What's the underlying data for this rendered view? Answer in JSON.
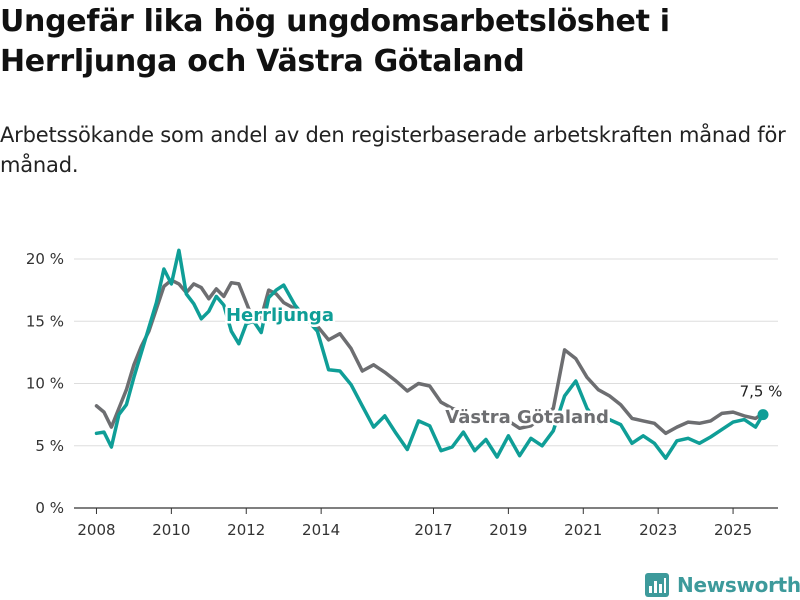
{
  "title": "Ungefär lika hög ungdomsarbetslöshet i Herrljunga och Västra Götaland",
  "subtitle": "Arbetssökande som andel av den registerbaserade arbetskraften månad för månad.",
  "brand": {
    "name": "Newsworthy",
    "icon": "bar-chart-logo-icon"
  },
  "colors": {
    "herrljunga": "#0f9e97",
    "vastra_gotaland": "#6d6e71",
    "grid": "#dddddd",
    "brand": "#3d9a9b"
  },
  "chart_data": {
    "type": "line",
    "title": "Ungefär lika hög ungdomsarbetslöshet i Herrljunga och Västra Götaland",
    "xlabel": "",
    "ylabel": "",
    "xlim": [
      2007.4,
      2026.2
    ],
    "ylim": [
      0,
      20
    ],
    "y_ticks": [
      0,
      5,
      10,
      15,
      20
    ],
    "y_tick_labels": [
      "0 %",
      "5 %",
      "10 %",
      "15 %",
      "20 %"
    ],
    "x_ticks": [
      2008,
      2010,
      2012,
      2014,
      2017,
      2019,
      2021,
      2023,
      2025
    ],
    "x_tick_labels": [
      "2008",
      "2010",
      "2012",
      "2014",
      "2017",
      "2019",
      "2021",
      "2023",
      "2025"
    ],
    "grid": true,
    "end_annotation": {
      "series": "Herrljunga",
      "text": "7,5 %",
      "value": 7.5
    },
    "series": [
      {
        "name": "Herrljunga",
        "label_at": [
          2012.9,
          15.5
        ],
        "x": [
          2008.0,
          2008.2,
          2008.4,
          2008.6,
          2008.8,
          2009.0,
          2009.2,
          2009.4,
          2009.6,
          2009.8,
          2010.0,
          2010.2,
          2010.4,
          2010.6,
          2010.8,
          2011.0,
          2011.2,
          2011.4,
          2011.6,
          2011.8,
          2012.0,
          2012.2,
          2012.4,
          2012.6,
          2012.8,
          2013.0,
          2013.3,
          2013.6,
          2013.9,
          2014.2,
          2014.5,
          2014.8,
          2015.1,
          2015.4,
          2015.7,
          2016.0,
          2016.3,
          2016.6,
          2016.9,
          2017.2,
          2017.5,
          2017.8,
          2018.1,
          2018.4,
          2018.7,
          2019.0,
          2019.3,
          2019.6,
          2019.9,
          2020.2,
          2020.5,
          2020.8,
          2021.1,
          2021.4,
          2021.7,
          2022.0,
          2022.3,
          2022.6,
          2022.9,
          2023.2,
          2023.5,
          2023.8,
          2024.1,
          2024.4,
          2024.7,
          2025.0,
          2025.3,
          2025.6,
          2025.8
        ],
        "values": [
          6.0,
          6.1,
          4.9,
          7.5,
          8.3,
          10.5,
          12.5,
          14.5,
          16.5,
          19.2,
          18.0,
          20.7,
          17.2,
          16.4,
          15.2,
          15.8,
          17.0,
          16.3,
          14.2,
          13.2,
          14.8,
          15.0,
          14.1,
          16.9,
          17.5,
          17.9,
          16.3,
          15.2,
          14.2,
          11.1,
          11.0,
          9.9,
          8.2,
          6.5,
          7.4,
          6.0,
          4.7,
          7.0,
          6.6,
          4.6,
          4.9,
          6.1,
          4.6,
          5.5,
          4.1,
          5.8,
          4.2,
          5.6,
          5.0,
          6.2,
          9.0,
          10.2,
          8.0,
          6.8,
          7.1,
          6.7,
          5.2,
          5.8,
          5.2,
          4.0,
          5.4,
          5.6,
          5.2,
          5.7,
          6.3,
          6.9,
          7.1,
          6.5,
          7.5
        ]
      },
      {
        "name": "Västra Götaland",
        "label_at": [
          2019.5,
          7.3
        ],
        "x": [
          2008.0,
          2008.2,
          2008.4,
          2008.6,
          2008.8,
          2009.0,
          2009.2,
          2009.4,
          2009.6,
          2009.8,
          2010.0,
          2010.2,
          2010.4,
          2010.6,
          2010.8,
          2011.0,
          2011.2,
          2011.4,
          2011.6,
          2011.8,
          2012.0,
          2012.2,
          2012.4,
          2012.6,
          2012.8,
          2013.0,
          2013.3,
          2013.6,
          2013.9,
          2014.2,
          2014.5,
          2014.8,
          2015.1,
          2015.4,
          2015.7,
          2016.0,
          2016.3,
          2016.6,
          2016.9,
          2017.2,
          2017.5,
          2017.8,
          2018.1,
          2018.4,
          2018.7,
          2019.0,
          2019.3,
          2019.6,
          2019.9,
          2020.2,
          2020.5,
          2020.8,
          2021.1,
          2021.4,
          2021.7,
          2022.0,
          2022.3,
          2022.6,
          2022.9,
          2023.2,
          2023.5,
          2023.8,
          2024.1,
          2024.4,
          2024.7,
          2025.0,
          2025.3,
          2025.6,
          2025.8
        ],
        "values": [
          8.2,
          7.7,
          6.5,
          8.0,
          9.5,
          11.5,
          13.0,
          14.2,
          16.0,
          17.8,
          18.3,
          18.0,
          17.3,
          18.0,
          17.7,
          16.8,
          17.6,
          17.0,
          18.1,
          18.0,
          16.5,
          15.0,
          15.3,
          17.5,
          17.2,
          16.5,
          16.0,
          15.6,
          14.6,
          13.5,
          14.0,
          12.8,
          11.0,
          11.5,
          10.9,
          10.2,
          9.4,
          10.0,
          9.8,
          8.5,
          8.0,
          7.8,
          6.9,
          7.4,
          7.2,
          7.0,
          6.4,
          6.6,
          7.4,
          8.0,
          12.7,
          12.0,
          10.5,
          9.5,
          9.0,
          8.3,
          7.2,
          7.0,
          6.8,
          6.0,
          6.5,
          6.9,
          6.8,
          7.0,
          7.6,
          7.7,
          7.4,
          7.2,
          7.6
        ]
      }
    ]
  }
}
